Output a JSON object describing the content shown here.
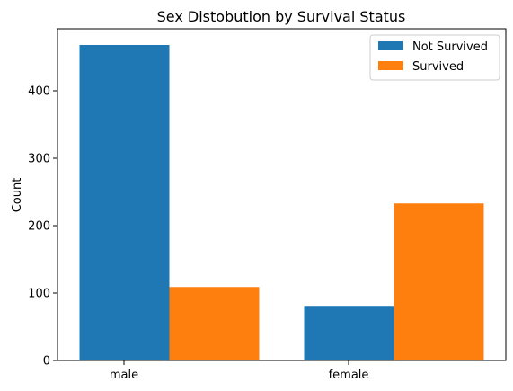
{
  "chart_data": {
    "type": "bar",
    "title": "Sex Distobution by Survival Status",
    "xlabel": "",
    "ylabel": "Count",
    "categories": [
      "male",
      "female"
    ],
    "series": [
      {
        "name": "Not Survived",
        "values": [
          468,
          81
        ],
        "color": "#1f77b4"
      },
      {
        "name": "Survived",
        "values": [
          109,
          233
        ],
        "color": "#ff7f0e"
      }
    ],
    "yticks": [
      0,
      100,
      200,
      300,
      400
    ],
    "ylim": [
      0,
      492
    ],
    "grid": false,
    "legend_position": "top-right"
  }
}
